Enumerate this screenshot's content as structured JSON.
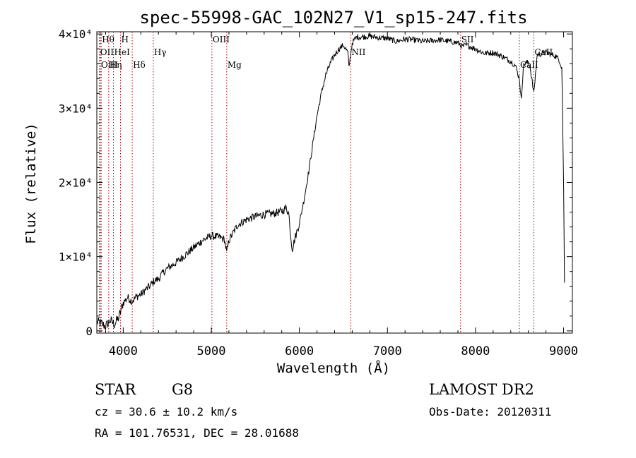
{
  "chart_data": {
    "type": "line",
    "title": "spec-55998-GAC_102N27_V1_sp15-247.fits",
    "xlabel": "Wavelength (Å)",
    "ylabel": "Flux (relative)",
    "xlim": [
      3700,
      9100
    ],
    "ylim": [
      -300,
      40300
    ],
    "x_ticks": [
      {
        "value": 4000,
        "label": "4000"
      },
      {
        "value": 5000,
        "label": "5000"
      },
      {
        "value": 6000,
        "label": "6000"
      },
      {
        "value": 7000,
        "label": "7000"
      },
      {
        "value": 8000,
        "label": "8000"
      },
      {
        "value": 9000,
        "label": "9000"
      }
    ],
    "y_ticks": [
      {
        "value": 0,
        "label": "0"
      },
      {
        "value": 10000,
        "label": "1×10⁴"
      },
      {
        "value": 20000,
        "label": "2×10⁴"
      },
      {
        "value": 30000,
        "label": "3×10⁴"
      },
      {
        "value": 40000,
        "label": "4×10⁴"
      }
    ],
    "grid": false,
    "series": [
      {
        "color": "#000000",
        "x": [
          3700,
          3750,
          3800,
          3850,
          3900,
          3950,
          4000,
          4050,
          4100,
          4150,
          4200,
          4250,
          4300,
          4350,
          4400,
          4450,
          4500,
          4600,
          4700,
          4800,
          4900,
          5000,
          5100,
          5150,
          5175,
          5200,
          5300,
          5400,
          5500,
          5600,
          5700,
          5800,
          5850,
          5880,
          5900,
          5920,
          5950,
          6000,
          6050,
          6100,
          6150,
          6200,
          6250,
          6300,
          6350,
          6400,
          6450,
          6500,
          6550,
          6563,
          6600,
          6650,
          6700,
          6800,
          6900,
          7000,
          7100,
          7200,
          7300,
          7400,
          7500,
          7600,
          7700,
          7800,
          7850,
          7900,
          8000,
          8100,
          8200,
          8300,
          8400,
          8450,
          8498,
          8520,
          8542,
          8560,
          8600,
          8620,
          8662,
          8700,
          8800,
          8900,
          8950,
          8980,
          9000,
          9010
        ],
        "y": [
          1200,
          1000,
          600,
          1400,
          900,
          1800,
          3800,
          4500,
          4000,
          4600,
          4900,
          5500,
          6000,
          6700,
          7000,
          7800,
          8400,
          9200,
          10200,
          11200,
          12200,
          12800,
          12600,
          12300,
          10500,
          12200,
          14300,
          15000,
          15400,
          15700,
          15800,
          16100,
          16600,
          15800,
          13000,
          11000,
          12500,
          14500,
          17500,
          21000,
          25000,
          29000,
          32000,
          34500,
          36000,
          37200,
          38000,
          38500,
          37500,
          35500,
          38800,
          39600,
          39600,
          39700,
          39500,
          39400,
          39000,
          39300,
          39200,
          39000,
          39100,
          39200,
          39000,
          38800,
          38300,
          38500,
          38000,
          37400,
          37500,
          37000,
          36300,
          35800,
          34000,
          31000,
          35600,
          36000,
          36200,
          35500,
          32000,
          37200,
          37500,
          37100,
          36500,
          35500,
          20000,
          6500
        ]
      }
    ],
    "lines": [
      {
        "x": 3750,
        "label": "Hθ",
        "row": 0,
        "color": "#aa0000"
      },
      {
        "x": 3730,
        "label": "OII",
        "row": 1,
        "color": "#aa0000"
      },
      {
        "x": 3740,
        "label": "OIII",
        "row": 2,
        "color": "#aa0000"
      },
      {
        "x": 3835,
        "label": "Hη",
        "row": 2,
        "color": "#aa0000"
      },
      {
        "x": 3889,
        "label": "HeI",
        "row": 1,
        "color": "#aa0000"
      },
      {
        "x": 3969,
        "label": "H",
        "row": 0,
        "color": "#aa0000"
      },
      {
        "x": 4102,
        "label": "Hδ",
        "row": 2,
        "color": "#aa0000"
      },
      {
        "x": 4341,
        "label": "Hγ",
        "row": 1,
        "color": "#aa0000"
      },
      {
        "x": 5007,
        "label": "OIII",
        "row": 0,
        "color": "#aa0000"
      },
      {
        "x": 5175,
        "label": "Mg",
        "row": 2,
        "color": "#aa0000"
      },
      {
        "x": 6584,
        "label": "NII",
        "row": 1,
        "color": "#aa0000"
      },
      {
        "x": 7830,
        "label": "SII",
        "row": 0,
        "color": "#aa0000"
      },
      {
        "x": 8498,
        "label": "CaII",
        "row": 2,
        "color": "#aa0000"
      },
      {
        "x": 8662,
        "label": "CaII",
        "row": 1,
        "color": "#aa0000"
      }
    ]
  },
  "info": {
    "object_class": "STAR",
    "subclass": "G8",
    "redshift_line": "cz = 30.6 ± 10.2 km/s",
    "coords_line": "RA = 101.76531, DEC =  28.01688",
    "survey": "LAMOST DR2",
    "obs_date": "Obs-Date: 20120311"
  }
}
